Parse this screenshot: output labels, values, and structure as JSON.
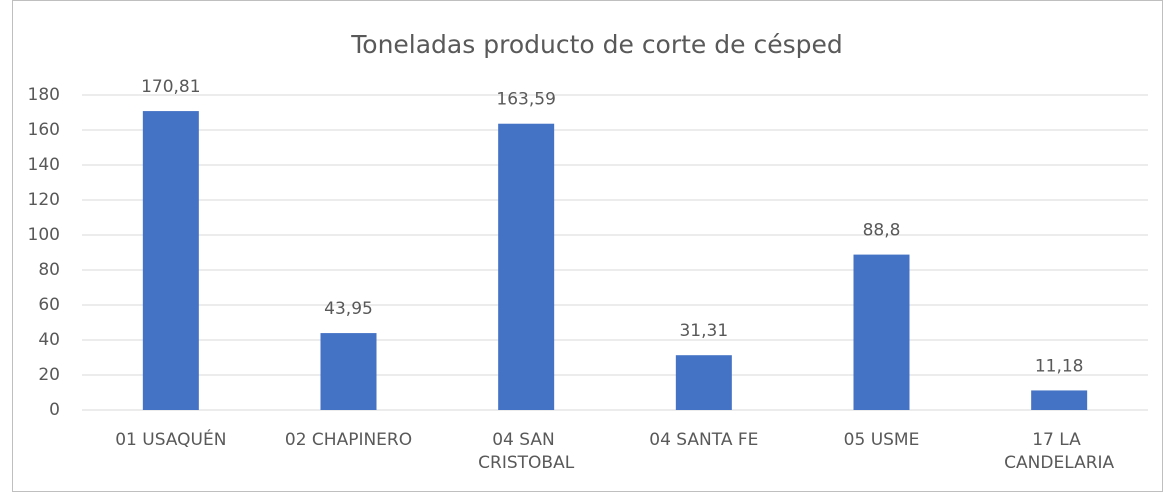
{
  "chart_data": {
    "type": "bar",
    "title": "Toneladas producto de corte de césped",
    "categories": [
      "01 USAQUÉN",
      "02 CHAPINERO",
      "04 SAN CRISTOBAL",
      "04 SANTA FE",
      "05 USME",
      "17 LA CANDELARIA"
    ],
    "values": [
      170.81,
      43.95,
      163.59,
      31.31,
      88.8,
      11.18
    ],
    "value_labels": [
      "170,81",
      "43,95",
      "163,59",
      "31,31",
      "88,8",
      "11,18"
    ],
    "color": "#4472c4",
    "ylim": [
      0,
      180
    ],
    "yticks": [
      0,
      20,
      40,
      60,
      80,
      100,
      120,
      140,
      160,
      180
    ],
    "grid": true
  }
}
